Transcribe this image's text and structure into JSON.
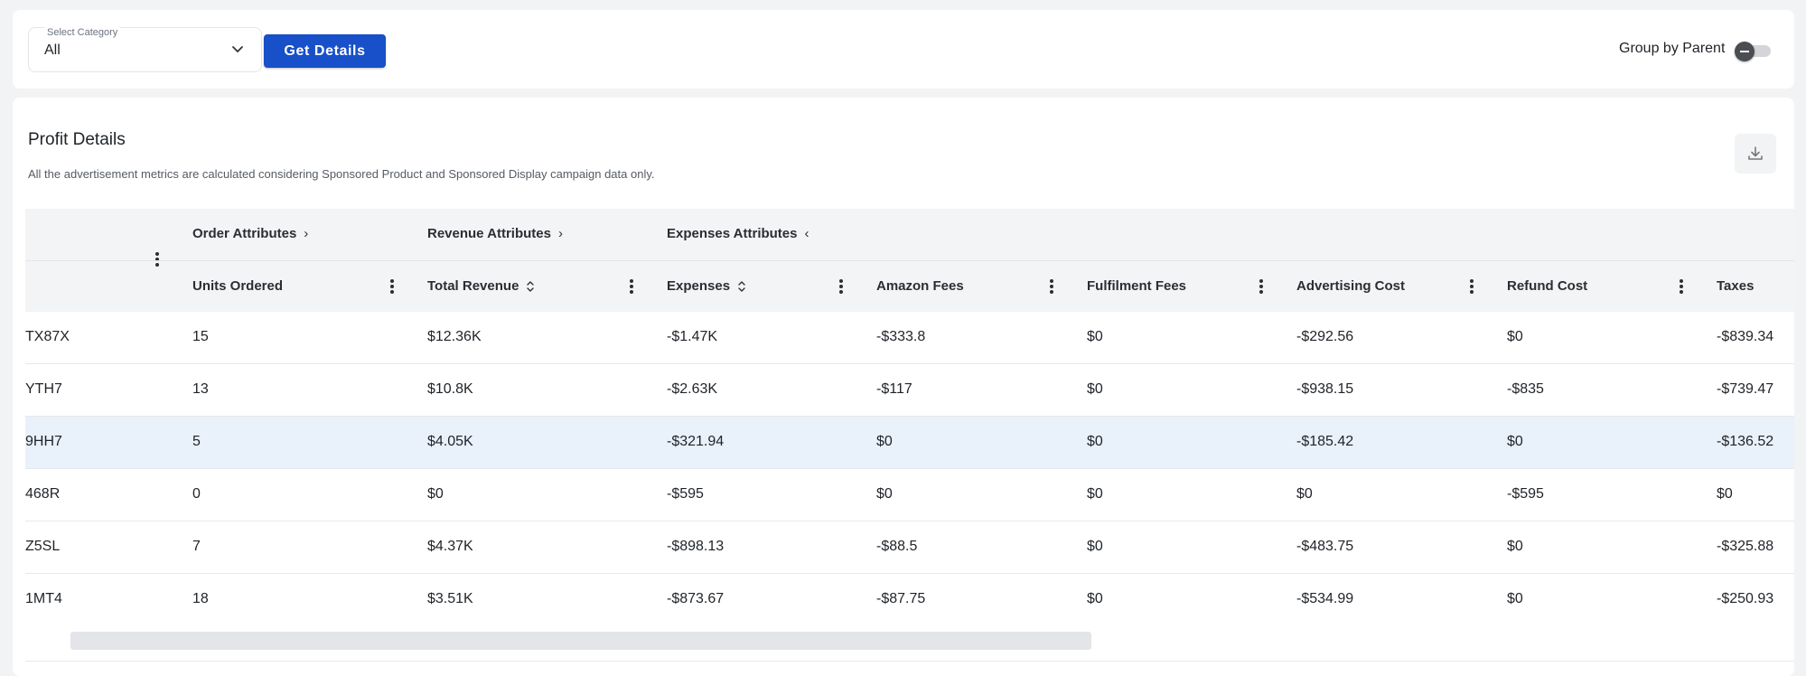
{
  "filter": {
    "category_label": "Select Category",
    "category_value": "All",
    "get_details_label": "Get Details",
    "group_by_label": "Group by Parent",
    "group_by_on": false
  },
  "panel": {
    "title": "Profit Details",
    "subtitle": "All the advertisement metrics are calculated considering Sponsored Product and Sponsored Display campaign data only."
  },
  "table": {
    "groups": [
      {
        "label": "Order Attributes",
        "arrow": "›"
      },
      {
        "label": "Revenue Attributes",
        "arrow": "›"
      },
      {
        "label": "Expenses Attributes",
        "arrow": "‹"
      }
    ],
    "columns": [
      {
        "label": "Units Ordered",
        "sortable": false
      },
      {
        "label": "Total Revenue",
        "sortable": true
      },
      {
        "label": "Expenses",
        "sortable": true
      },
      {
        "label": "Amazon Fees",
        "sortable": false
      },
      {
        "label": "Fulfilment Fees",
        "sortable": false
      },
      {
        "label": "Advertising Cost",
        "sortable": false
      },
      {
        "label": "Refund Cost",
        "sortable": false
      },
      {
        "label": "Taxes",
        "sortable": false
      }
    ],
    "rows": [
      {
        "sku": "TX87X",
        "units": "15",
        "revenue": "$12.36K",
        "expenses": "-$1.47K",
        "amazon_fees": "-$333.8",
        "fulfilment": "$0",
        "advertising": "-$292.56",
        "refund": "$0",
        "taxes": "-$839.34"
      },
      {
        "sku": "YTH7",
        "units": "13",
        "revenue": "$10.8K",
        "expenses": "-$2.63K",
        "amazon_fees": "-$117",
        "fulfilment": "$0",
        "advertising": "-$938.15",
        "refund": "-$835",
        "taxes": "-$739.47"
      },
      {
        "sku": "9HH7",
        "units": "5",
        "revenue": "$4.05K",
        "expenses": "-$321.94",
        "amazon_fees": "$0",
        "fulfilment": "$0",
        "advertising": "-$185.42",
        "refund": "$0",
        "taxes": "-$136.52"
      },
      {
        "sku": "468R",
        "units": "0",
        "revenue": "$0",
        "expenses": "-$595",
        "amazon_fees": "$0",
        "fulfilment": "$0",
        "advertising": "$0",
        "refund": "-$595",
        "taxes": "$0"
      },
      {
        "sku": "Z5SL",
        "units": "7",
        "revenue": "$4.37K",
        "expenses": "-$898.13",
        "amazon_fees": "-$88.5",
        "fulfilment": "$0",
        "advertising": "-$483.75",
        "refund": "$0",
        "taxes": "-$325.88"
      },
      {
        "sku": "1MT4",
        "units": "18",
        "revenue": "$3.51K",
        "expenses": "-$873.67",
        "amazon_fees": "-$87.75",
        "fulfilment": "$0",
        "advertising": "-$534.99",
        "refund": "$0",
        "taxes": "-$250.93"
      }
    ],
    "highlighted_row": 2
  },
  "icons": {
    "dropdown": "chevron-down-icon",
    "download": "download-icon",
    "column_menu": "kebab-menu-icon",
    "sort": "sort-icon"
  },
  "colors": {
    "primary": "#1750c8",
    "header_bg": "#f3f4f6",
    "row_highlight": "#e9f1fb"
  }
}
